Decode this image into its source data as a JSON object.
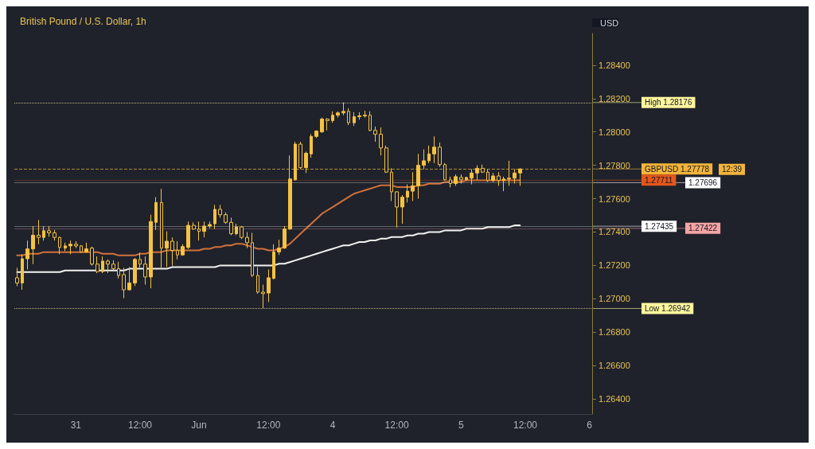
{
  "chart_data": {
    "type": "candlestick",
    "title": "British Pound / U.S. Dollar, 1h",
    "ylabel": "USD",
    "color": "#f5c242",
    "categories": [
      null,
      null,
      null,
      null,
      null,
      null,
      null,
      null,
      null,
      null,
      null,
      "31",
      null,
      null,
      null,
      null,
      null,
      null,
      null,
      null,
      null,
      null,
      null,
      "12:00",
      null,
      null,
      null,
      null,
      null,
      null,
      null,
      null,
      null,
      null,
      "Jun",
      null,
      null,
      null,
      null,
      null,
      null,
      null,
      null,
      null,
      null,
      null,
      null,
      "12:00",
      null,
      null,
      null,
      null,
      null,
      null,
      null,
      null,
      null,
      null,
      null,
      "4",
      null,
      null,
      null,
      null,
      null,
      null,
      null,
      null,
      null,
      null,
      null,
      "12:00",
      null,
      null,
      null,
      null,
      null,
      null,
      null,
      null,
      null,
      null,
      null,
      "5",
      null,
      null,
      null,
      null,
      null,
      null,
      null,
      null,
      null,
      null,
      null,
      "12:00",
      null,
      null,
      null,
      null,
      null,
      null,
      null,
      null,
      null,
      null,
      null,
      "6"
    ],
    "ohlc": [
      [
        1.27126,
        1.27186,
        1.27076,
        1.27095
      ],
      [
        1.27095,
        1.27267,
        1.27054,
        1.2724
      ],
      [
        1.2724,
        1.27349,
        1.27176,
        1.27299
      ],
      [
        1.27299,
        1.27436,
        1.27208,
        1.27381
      ],
      [
        1.27381,
        1.27472,
        1.27327,
        1.27368
      ],
      [
        1.27368,
        1.27436,
        1.27349,
        1.27408
      ],
      [
        1.27408,
        1.27436,
        1.27372,
        1.27395
      ],
      [
        1.27395,
        1.27413,
        1.27349,
        1.27368
      ],
      [
        1.27368,
        1.27372,
        1.27267,
        1.27308
      ],
      [
        1.27304,
        1.27336,
        1.27286,
        1.27317
      ],
      [
        1.27317,
        1.27349,
        1.27267,
        1.27327
      ],
      [
        1.27327,
        1.27345,
        1.27304,
        1.27317
      ],
      [
        1.27317,
        1.27322,
        1.27276,
        1.27281
      ],
      [
        1.27281,
        1.27336,
        1.27276,
        1.27299
      ],
      [
        1.27304,
        1.27313,
        1.27199,
        1.27208
      ],
      [
        1.27208,
        1.27254,
        1.27154,
        1.27163
      ],
      [
        1.27163,
        1.27254,
        1.27154,
        1.27226
      ],
      [
        1.27226,
        1.27236,
        1.27154,
        1.27208
      ],
      [
        1.27208,
        1.27231,
        1.27163,
        1.27181
      ],
      [
        1.27181,
        1.27222,
        1.27122,
        1.2714
      ],
      [
        1.27145,
        1.27186,
        1.27004,
        1.27054
      ],
      [
        1.27054,
        1.2719,
        1.2705,
        1.27095
      ],
      [
        1.27095,
        1.27245,
        1.27076,
        1.27236
      ],
      [
        1.27236,
        1.27277,
        1.27186,
        1.27208
      ],
      [
        1.27208,
        1.27254,
        1.27085,
        1.27131
      ],
      [
        1.27131,
        1.27504,
        1.27063,
        1.27463
      ],
      [
        1.27458,
        1.27609,
        1.27413,
        1.27577
      ],
      [
        1.27577,
        1.27659,
        1.27186,
        1.27304
      ],
      [
        1.27304,
        1.27404,
        1.2719,
        1.27345
      ],
      [
        1.27345,
        1.27368,
        1.27199,
        1.2729
      ],
      [
        1.2729,
        1.27345,
        1.27236,
        1.27263
      ],
      [
        1.27263,
        1.27327,
        1.27258,
        1.27313
      ],
      [
        1.27308,
        1.27463,
        1.27299,
        1.2744
      ],
      [
        1.2744,
        1.27458,
        1.27413,
        1.27418
      ],
      [
        1.27418,
        1.27463,
        1.27349,
        1.27404
      ],
      [
        1.27404,
        1.27463,
        1.27368,
        1.27436
      ],
      [
        1.27436,
        1.27463,
        1.27422,
        1.27445
      ],
      [
        1.2745,
        1.27563,
        1.27418,
        1.27536
      ],
      [
        1.27536,
        1.27563,
        1.27486,
        1.27504
      ],
      [
        1.27504,
        1.27518,
        1.27449,
        1.27458
      ],
      [
        1.27458,
        1.27486,
        1.27381,
        1.2739
      ],
      [
        1.2739,
        1.2745,
        1.27381,
        1.27431
      ],
      [
        1.27431,
        1.27436,
        1.27358,
        1.27368
      ],
      [
        1.27368,
        1.274,
        1.27304,
        1.27336
      ],
      [
        1.27336,
        1.27395,
        1.27131,
        1.2714
      ],
      [
        1.2714,
        1.2719,
        1.27031,
        1.2704
      ],
      [
        1.2704,
        1.27085,
        1.26942,
        1.27031
      ],
      [
        1.27035,
        1.27176,
        1.26981,
        1.27126
      ],
      [
        1.27122,
        1.27327,
        1.27117,
        1.27281
      ],
      [
        1.27281,
        1.27354,
        1.27263,
        1.27304
      ],
      [
        1.27304,
        1.27436,
        1.27299,
        1.27418
      ],
      [
        1.27418,
        1.27859,
        1.27413,
        1.27718
      ],
      [
        1.27713,
        1.27941,
        1.27709,
        1.27927
      ],
      [
        1.27927,
        1.27941,
        1.27777,
        1.27786
      ],
      [
        1.27786,
        1.27882,
        1.27754,
        1.27872
      ],
      [
        1.27868,
        1.27986,
        1.27845,
        1.27973
      ],
      [
        1.27973,
        1.28009,
        1.27964,
        1.28005
      ],
      [
        1.28,
        1.28086,
        1.27995,
        1.28077
      ],
      [
        1.28077,
        1.28082,
        1.28009,
        1.28068
      ],
      [
        1.28068,
        1.28123,
        1.28055,
        1.281
      ],
      [
        1.281,
        1.28123,
        1.28086,
        1.28114
      ],
      [
        1.28114,
        1.28176,
        1.281,
        1.28123
      ],
      [
        1.28123,
        1.28141,
        1.28041,
        1.28055
      ],
      [
        1.28055,
        1.28118,
        1.28036,
        1.28091
      ],
      [
        1.28091,
        1.28118,
        1.28073,
        1.28096
      ],
      [
        1.28096,
        1.28127,
        1.28086,
        1.281
      ],
      [
        1.281,
        1.28123,
        1.28005,
        1.28009
      ],
      [
        1.28009,
        1.28032,
        1.27941,
        1.27986
      ],
      [
        1.27986,
        1.28027,
        1.27859,
        1.27904
      ],
      [
        1.27904,
        1.27918,
        1.27754,
        1.27759
      ],
      [
        1.27759,
        1.27782,
        1.27586,
        1.27641
      ],
      [
        1.27641,
        1.27645,
        1.27427,
        1.2755
      ],
      [
        1.2755,
        1.27622,
        1.2745,
        1.27609
      ],
      [
        1.27609,
        1.27686,
        1.27577,
        1.27645
      ],
      [
        1.27645,
        1.27759,
        1.27586,
        1.27677
      ],
      [
        1.27677,
        1.27868,
        1.276,
        1.278
      ],
      [
        1.278,
        1.27895,
        1.27777,
        1.27827
      ],
      [
        1.27827,
        1.27918,
        1.27813,
        1.27868
      ],
      [
        1.27868,
        1.27973,
        1.27813,
        1.27909
      ],
      [
        1.27909,
        1.27936,
        1.27791,
        1.27804
      ],
      [
        1.27804,
        1.27813,
        1.27709,
        1.27713
      ],
      [
        1.27713,
        1.27732,
        1.27668,
        1.27691
      ],
      [
        1.27691,
        1.27745,
        1.27677,
        1.27732
      ],
      [
        1.27727,
        1.27745,
        1.27691,
        1.27713
      ],
      [
        1.27713,
        1.27732,
        1.27709,
        1.27727
      ],
      [
        1.27723,
        1.27777,
        1.27686,
        1.27754
      ],
      [
        1.27754,
        1.278,
        1.27713,
        1.27782
      ],
      [
        1.27782,
        1.27804,
        1.27754,
        1.27759
      ],
      [
        1.27759,
        1.27777,
        1.277,
        1.27709
      ],
      [
        1.27709,
        1.27754,
        1.277,
        1.27736
      ],
      [
        1.27736,
        1.27759,
        1.27677,
        1.27709
      ],
      [
        1.27709,
        1.27732,
        1.27645,
        1.27718
      ],
      [
        1.27718,
        1.27827,
        1.27677,
        1.27723
      ],
      [
        1.27723,
        1.27777,
        1.27691,
        1.27754
      ],
      [
        1.27754,
        1.27782,
        1.27677,
        1.27778
      ],
      null,
      null,
      null,
      null,
      null,
      null,
      null,
      null,
      null,
      null,
      null,
      null,
      null
    ],
    "series": [
      {
        "type": "line",
        "color": "#d2713a",
        "values": [
          1.2726,
          1.2726,
          1.2727,
          1.2727,
          1.2727,
          1.2728,
          1.2728,
          1.2728,
          1.2728,
          1.2728,
          1.2728,
          1.2728,
          1.2728,
          1.2728,
          1.2728,
          1.2728,
          1.2727,
          1.2727,
          1.2727,
          1.2726,
          1.2726,
          1.2726,
          1.2726,
          1.2727,
          1.2727,
          1.2728,
          1.2728,
          1.2728,
          1.2729,
          1.2729,
          1.2729,
          1.2729,
          1.2729,
          1.2729,
          1.2729,
          1.273,
          1.273,
          1.2731,
          1.2731,
          1.2732,
          1.2732,
          1.2733,
          1.2733,
          1.2732,
          1.2731,
          1.273,
          1.273,
          1.2729,
          1.2729,
          1.273,
          1.2731,
          1.2733,
          1.2736,
          1.2739,
          1.2742,
          1.2745,
          1.2748,
          1.2751,
          1.2753,
          1.2755,
          1.2757,
          1.2759,
          1.2761,
          1.2763,
          1.2764,
          1.2765,
          1.2766,
          1.2767,
          1.2768,
          1.2768,
          1.2768,
          1.2767,
          1.2767,
          1.2767,
          1.2767,
          1.2768,
          1.2768,
          1.2769,
          1.2769,
          1.2769,
          1.277,
          1.277,
          1.277,
          1.277,
          1.2771,
          1.2771,
          1.2771,
          1.2771,
          1.2771,
          1.2771,
          1.2771,
          1.2771,
          1.2771,
          1.2771,
          1.2771,
          null,
          null,
          null,
          null,
          null,
          null,
          null,
          null,
          null,
          null,
          null,
          null,
          null
        ]
      },
      {
        "type": "line",
        "color": "#f2f2f2",
        "values": [
          1.2716,
          1.2716,
          1.2716,
          1.2716,
          1.2716,
          1.2716,
          1.2716,
          1.2716,
          1.2716,
          1.2717,
          1.2717,
          1.2717,
          1.2717,
          1.2717,
          1.2717,
          1.2717,
          1.2717,
          1.2717,
          1.2717,
          1.2717,
          1.2717,
          1.2718,
          1.2718,
          1.2718,
          1.2718,
          1.2718,
          1.2718,
          1.2718,
          1.2718,
          1.2719,
          1.2719,
          1.2719,
          1.2719,
          1.2719,
          1.2719,
          1.2719,
          1.2719,
          1.2719,
          1.272,
          1.272,
          1.272,
          1.272,
          1.272,
          1.272,
          1.272,
          1.272,
          1.272,
          1.272,
          1.272,
          1.2721,
          1.2721,
          1.2722,
          1.2723,
          1.2724,
          1.2725,
          1.2726,
          1.2727,
          1.2728,
          1.2729,
          1.273,
          1.2731,
          1.2732,
          1.2732,
          1.2733,
          1.2734,
          1.2734,
          1.2735,
          1.2735,
          1.2736,
          1.2736,
          1.2737,
          1.2737,
          1.2737,
          1.2738,
          1.2738,
          1.2739,
          1.2739,
          1.274,
          1.274,
          1.274,
          1.2741,
          1.2741,
          1.2741,
          1.2741,
          1.2742,
          1.2742,
          1.2742,
          1.2742,
          1.2743,
          1.2743,
          1.2743,
          1.2743,
          1.2743,
          1.2744,
          1.2744,
          null,
          null,
          null,
          null,
          null,
          null,
          null,
          null,
          null,
          null,
          null,
          null,
          null
        ]
      }
    ],
    "ylim": [
      1.2631,
      1.2859
    ],
    "yticks": [
      {
        "value": 1.264,
        "label": "1.26400"
      },
      {
        "value": 1.266,
        "label": "1.26600"
      },
      {
        "value": 1.268,
        "label": "1.26800"
      },
      {
        "value": 1.27,
        "label": "1.27000"
      },
      {
        "value": 1.272,
        "label": "1.27200"
      },
      {
        "value": 1.274,
        "label": "1.27400"
      },
      {
        "value": 1.276,
        "label": "1.27600"
      },
      {
        "value": 1.278,
        "label": "1.27800"
      },
      {
        "value": 1.28,
        "label": "1.28000"
      },
      {
        "value": 1.282,
        "label": "1.28200"
      },
      {
        "value": 1.284,
        "label": "1.28400"
      }
    ],
    "ref_lines": [
      {
        "axis": "y",
        "value": 1.28176,
        "label": "High 1.28176",
        "color": "#fff59d",
        "line_style": "dotted"
      },
      {
        "axis": "y",
        "value": 1.27778,
        "label": "GBPUSD 1.27778",
        "color": "#f2b43a",
        "line_style": "dashed"
      },
      {
        "axis": "y",
        "value": 1.27711,
        "label": "1.27711",
        "color": "#e4571b",
        "line_style": "solid"
      },
      {
        "axis": "y",
        "value": 1.27696,
        "label": "1.27696",
        "color": "#ffffff",
        "line_style": "solid"
      },
      {
        "axis": "y",
        "value": 1.27435,
        "label": "1.27435",
        "color": "#ffffff",
        "line_style": "solid"
      },
      {
        "axis": "y",
        "value": 1.27422,
        "label": "1.27422",
        "color": "#f4a4a4",
        "line_style": "solid"
      },
      {
        "axis": "y",
        "value": 1.26942,
        "label": "Low 1.26942",
        "color": "#fff59d",
        "line_style": "dotted"
      }
    ],
    "annotations": [
      "12:39"
    ]
  }
}
